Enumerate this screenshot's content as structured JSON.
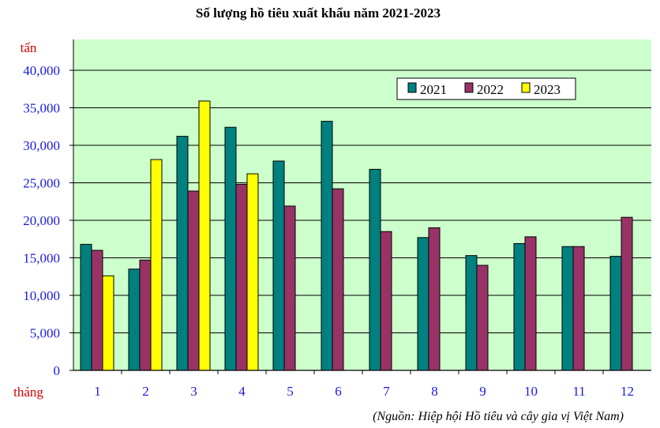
{
  "chart_data": {
    "type": "bar",
    "title": "Số lượng hồ tiêu xuất khẩu năm 2021-2023",
    "ylabel": "tấn",
    "xlabel": "tháng",
    "source": "(Nguồn: Hiệp hội Hồ tiêu và cây gia vị Việt Nam)",
    "categories": [
      "1",
      "2",
      "3",
      "4",
      "5",
      "6",
      "7",
      "8",
      "9",
      "10",
      "11",
      "12"
    ],
    "ylim": [
      0,
      40000
    ],
    "yticks": [
      "0",
      "5,000",
      "10,000",
      "15,000",
      "20,000",
      "25,000",
      "30,000",
      "35,000",
      "40,000"
    ],
    "ytick_values": [
      0,
      5000,
      10000,
      15000,
      20000,
      25000,
      30000,
      35000,
      40000
    ],
    "grid": true,
    "legend_position": "top-right",
    "series": [
      {
        "name": "2021",
        "color": "#00807f",
        "values": [
          16800,
          13500,
          31200,
          32400,
          27900,
          33200,
          26800,
          17700,
          15300,
          16900,
          16500,
          15200
        ]
      },
      {
        "name": "2022",
        "color": "#993366",
        "values": [
          16000,
          14700,
          23900,
          24800,
          21900,
          24200,
          18500,
          19000,
          14000,
          17800,
          16500,
          20400
        ]
      },
      {
        "name": "2023",
        "color": "#ffff00",
        "values": [
          12600,
          28100,
          35900,
          26200,
          null,
          null,
          null,
          null,
          null,
          null,
          null,
          null
        ]
      }
    ],
    "plot_background": "#ccffcc"
  }
}
